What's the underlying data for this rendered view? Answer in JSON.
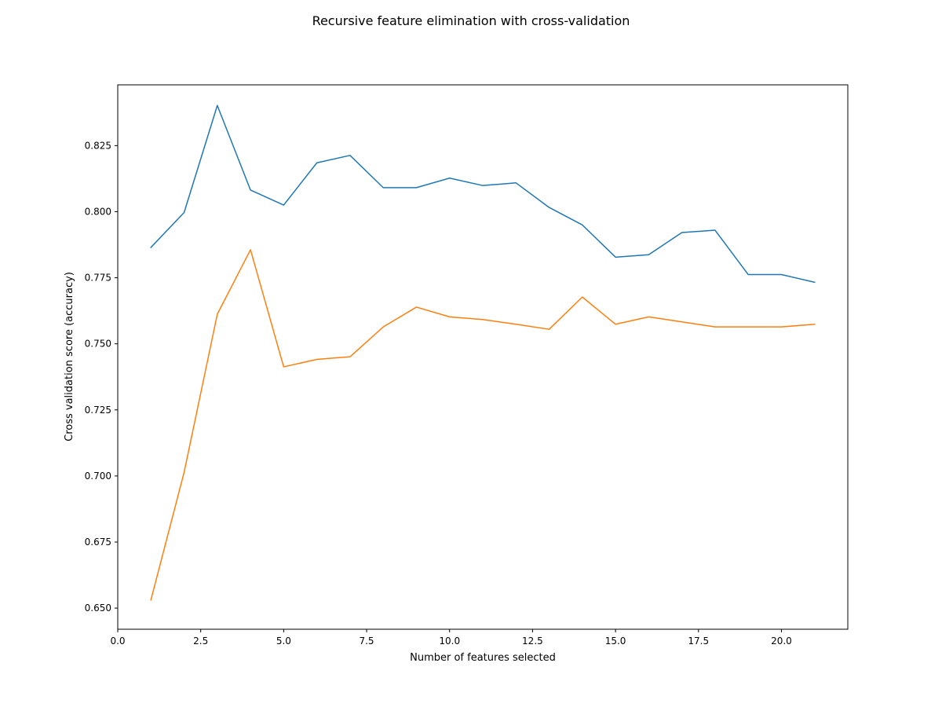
{
  "chart_data": {
    "type": "line",
    "title": "Recursive feature elimination with cross-validation",
    "xlabel": "Number of features selected",
    "ylabel": "Cross validation score (accuracy)",
    "xlim": [
      0.0,
      22.0
    ],
    "ylim": [
      0.642,
      0.848
    ],
    "xticks": [
      0.0,
      2.5,
      5.0,
      7.5,
      10.0,
      12.5,
      15.0,
      17.5,
      20.0
    ],
    "xtick_labels": [
      "0.0",
      "2.5",
      "5.0",
      "7.5",
      "10.0",
      "12.5",
      "15.0",
      "17.5",
      "20.0"
    ],
    "yticks": [
      0.65,
      0.675,
      0.7,
      0.725,
      0.75,
      0.775,
      0.8,
      0.825
    ],
    "ytick_labels": [
      "0.650",
      "0.675",
      "0.700",
      "0.725",
      "0.750",
      "0.775",
      "0.800",
      "0.825"
    ],
    "grid": false,
    "legend": "none",
    "x": [
      1,
      2,
      3,
      4,
      5,
      6,
      7,
      8,
      9,
      10,
      11,
      12,
      13,
      14,
      15,
      16,
      17,
      18,
      19,
      20,
      21
    ],
    "series": [
      {
        "color": "#1f77b4",
        "values": [
          0.7865,
          0.7997,
          0.8402,
          0.8082,
          0.8025,
          0.8185,
          0.8213,
          0.8091,
          0.8091,
          0.8127,
          0.8099,
          0.8109,
          0.8016,
          0.795,
          0.7828,
          0.7837,
          0.7921,
          0.793,
          0.7762,
          0.7762,
          0.7733
        ]
      },
      {
        "color": "#ff7f0e",
        "values": [
          0.6531,
          0.7014,
          0.7612,
          0.7856,
          0.7413,
          0.7441,
          0.7451,
          0.7564,
          0.7639,
          0.7602,
          0.7592,
          0.7574,
          0.7555,
          0.7677,
          0.7574,
          0.7602,
          0.7583,
          0.7564,
          0.7564,
          0.7564,
          0.7574
        ]
      }
    ]
  }
}
